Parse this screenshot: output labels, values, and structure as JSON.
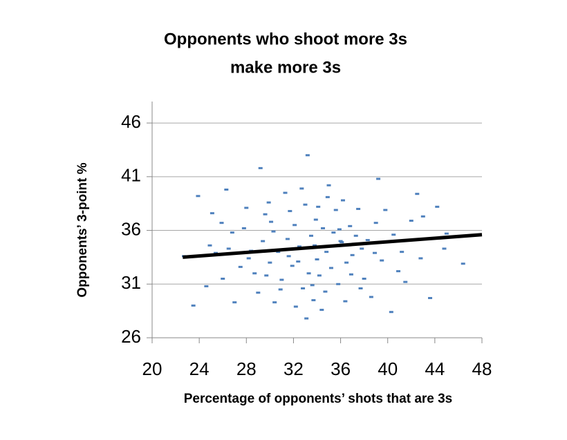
{
  "chart_data": {
    "type": "scatter",
    "title": [
      "Opponents who shoot more 3s",
      "make more 3s"
    ],
    "x_label": "Percentage of opponents’ shots that are 3s",
    "y_label": "Opponents’ 3-point %",
    "xlim": [
      20,
      48
    ],
    "xticks": [
      20,
      24,
      28,
      32,
      36,
      40,
      44,
      48
    ],
    "ylim": [
      26,
      48
    ],
    "yticks": [
      26,
      31,
      36,
      41,
      46
    ],
    "grid": true,
    "points": {
      "color": "#4f81bd",
      "x": [
        33.2,
        29.2,
        23.9,
        26.3,
        39.2,
        46.4,
        40.3,
        43.6,
        33.1,
        23.5,
        44.8,
        22.7,
        42.5,
        30.1,
        31.5,
        32.4,
        33.8,
        34.5,
        35.2,
        36.1,
        37.0,
        28.4,
        29.6,
        31.0,
        32.8,
        34.2,
        35.6,
        36.8,
        38.3,
        39.5,
        27.5,
        26.8,
        25.4,
        30.7,
        33.0,
        34.9,
        31.9,
        35.8,
        37.5,
        29.0,
        30.4,
        32.1,
        33.5,
        34.0,
        36.5,
        38.0,
        40.5,
        41.2,
        42.0,
        28.0,
        27.0,
        24.6,
        25.9,
        31.3,
        35.0,
        36.2,
        33.7,
        34.7,
        32.5,
        30.0,
        29.4,
        28.7,
        37.8,
        39.0,
        40.9,
        43.0,
        44.2,
        26.0,
        24.9,
        31.7,
        33.3,
        35.4,
        36.9,
        38.6,
        30.9,
        32.2,
        34.4,
        36.4,
        27.8,
        29.9,
        33.9,
        35.9,
        37.3,
        39.8,
        41.5,
        38.9,
        34.8,
        31.6,
        30.3,
        28.2,
        26.5,
        25.1,
        42.8,
        45.0,
        32.7,
        34.1,
        29.7,
        33.6,
        37.7,
        36.0
      ],
      "y": [
        43.0,
        41.8,
        39.2,
        39.8,
        40.8,
        32.9,
        28.4,
        29.7,
        27.8,
        29.0,
        34.3,
        33.6,
        39.4,
        36.8,
        35.2,
        33.1,
        34.6,
        36.2,
        32.5,
        34.9,
        33.7,
        34.1,
        37.5,
        31.4,
        30.6,
        31.8,
        37.9,
        36.4,
        35.1,
        33.2,
        32.6,
        35.8,
        33.9,
        34.0,
        38.4,
        39.1,
        32.7,
        31.0,
        38.0,
        30.2,
        29.3,
        36.5,
        35.5,
        33.3,
        33.0,
        31.5,
        35.6,
        34.0,
        36.9,
        38.1,
        29.3,
        30.8,
        36.7,
        39.5,
        40.2,
        38.8,
        29.5,
        30.3,
        34.5,
        33.0,
        35.0,
        32.0,
        34.3,
        36.7,
        32.2,
        37.3,
        38.2,
        31.5,
        34.6,
        37.8,
        32.0,
        35.8,
        31.9,
        29.8,
        30.5,
        28.9,
        28.6,
        29.4,
        36.2,
        38.6,
        37.0,
        36.1,
        35.5,
        37.9,
        31.2,
        33.9,
        34.0,
        33.6,
        35.9,
        33.4,
        34.3,
        37.6,
        33.4,
        35.7,
        39.9,
        38.2,
        31.8,
        30.9,
        30.6,
        35.0
      ]
    },
    "trend": {
      "color": "#000000",
      "x": [
        22.6,
        48
      ],
      "y": [
        33.5,
        35.6
      ]
    }
  }
}
